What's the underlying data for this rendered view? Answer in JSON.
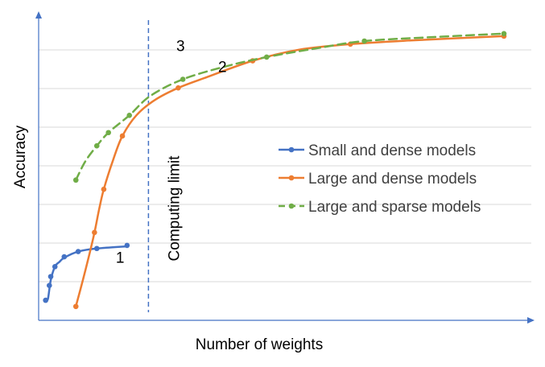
{
  "chart_data": {
    "type": "line",
    "title": "",
    "xlabel": "Number of  weights",
    "ylabel": "Accuracy",
    "xlim": [
      0,
      100
    ],
    "ylim": [
      0,
      100
    ],
    "grid": true,
    "x_tick_labels": false,
    "y_tick_labels": false,
    "legend_position": "right",
    "series": [
      {
        "name": "Small and dense models",
        "color": "#4472C4",
        "style": "solid",
        "x": [
          1.5,
          2.3,
          2.6,
          3.5,
          5.5,
          8.5,
          12.5,
          19
        ],
        "y": [
          6.5,
          11.3,
          14.2,
          17.4,
          20.6,
          22.3,
          23.3,
          24.3
        ],
        "fit_x": [
          1.5,
          2.0,
          2.6,
          3.5,
          4.5,
          5.5,
          8.5,
          12.5,
          19
        ],
        "fit_y": [
          6.5,
          7.0,
          13.0,
          17.4,
          19.0,
          20.3,
          22.3,
          23.3,
          24.0
        ]
      },
      {
        "name": "Large and dense models",
        "color": "#ED7D31",
        "style": "solid",
        "x": [
          8,
          12,
          14,
          18,
          30,
          46,
          67,
          100
        ],
        "y": [
          4.5,
          28.5,
          42.5,
          59.8,
          75.4,
          84.2,
          89.6,
          92.2
        ],
        "fit_x": [
          8,
          9.5,
          11,
          12,
          13,
          14,
          16,
          18,
          21,
          25,
          30,
          36,
          46,
          56,
          67,
          80,
          100
        ],
        "fit_y": [
          4.5,
          13,
          22,
          28.5,
          36,
          42.5,
          52,
          59.8,
          66.5,
          71.5,
          75.4,
          78.8,
          84.2,
          87.8,
          89.6,
          90.8,
          92.2
        ]
      },
      {
        "name": "Large and sparse models",
        "color": "#70AD47",
        "style": "dashed",
        "x": [
          8,
          12.5,
          15,
          19.5,
          31,
          49,
          70,
          100
        ],
        "y": [
          45.5,
          56.6,
          60.9,
          66.5,
          78.2,
          85.4,
          90.6,
          93.0
        ],
        "fit_x": [
          8,
          10,
          12.5,
          15,
          19.5,
          24,
          31,
          40,
          49,
          60,
          70,
          85,
          100
        ],
        "fit_y": [
          45.5,
          51.5,
          56.6,
          60.9,
          66.5,
          72.8,
          78.2,
          82.3,
          85.4,
          88.3,
          90.6,
          91.9,
          93.0
        ]
      }
    ],
    "reference_lines": [
      {
        "label": "Computing limit",
        "x": 23.6,
        "style": "dashed",
        "color": "#4472C4"
      }
    ],
    "annotations": [
      {
        "text": "1",
        "x": 17.5,
        "y": 18.7
      },
      {
        "text": "2",
        "x": 39.5,
        "y": 80.5
      },
      {
        "text": "3",
        "x": 30.5,
        "y": 87.3
      }
    ]
  }
}
